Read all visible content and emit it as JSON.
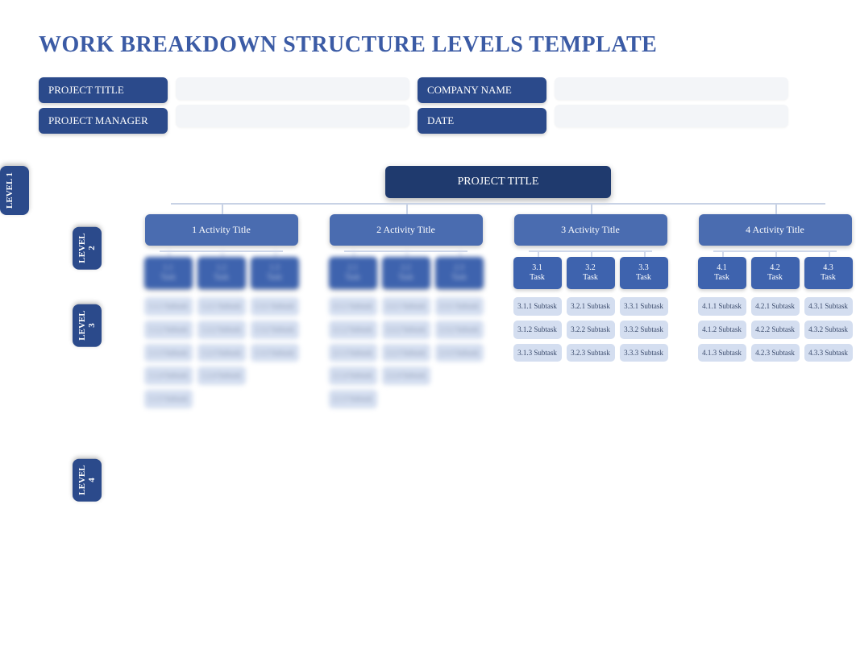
{
  "colors": {
    "title": "#3b5ba5",
    "label_bg": "#2b4a8b",
    "input_bg": "#f3f5f8",
    "root_bg": "#1f3a6e",
    "activity_bg": "#4a6cb0",
    "task_bg": "#3e63ae",
    "subtask_bg": "#d4def0",
    "subtask_text": "#3a4a6b",
    "connector": "#c8d2e5",
    "white": "#ffffff"
  },
  "page_title": "WORK BREAKDOWN STRUCTURE LEVELS TEMPLATE",
  "meta": {
    "left": [
      {
        "label": "PROJECT TITLE",
        "value": ""
      },
      {
        "label": "PROJECT MANAGER",
        "value": ""
      }
    ],
    "right": [
      {
        "label": "COMPANY NAME",
        "value": ""
      },
      {
        "label": "DATE",
        "value": ""
      }
    ]
  },
  "level_labels": [
    "LEVEL 1",
    "LEVEL 2",
    "LEVEL 3",
    "LEVEL 4"
  ],
  "tree": {
    "root": "PROJECT TITLE",
    "activities": [
      {
        "title": "1 Activity Title",
        "blurred": true,
        "tasks": [
          {
            "id": "1.1",
            "label": "Task",
            "subtasks": [
              "1.1.1 Subtask",
              "1.1.2 Subtask",
              "1.1.3 Subtask",
              "1.1.4 Subtask",
              "1.1.5 Subtask"
            ]
          },
          {
            "id": "1.2",
            "label": "Task",
            "subtasks": [
              "1.2.1 Subtask",
              "1.2.2 Subtask",
              "1.2.3 Subtask",
              "1.2.4 Subtask"
            ]
          },
          {
            "id": "1.3",
            "label": "Task",
            "subtasks": [
              "1.3.1 Subtask",
              "1.3.2 Subtask",
              "1.3.3 Subtask"
            ]
          }
        ]
      },
      {
        "title": "2 Activity Title",
        "blurred": true,
        "tasks": [
          {
            "id": "2.1",
            "label": "Task",
            "subtasks": [
              "2.1.1 Subtask",
              "2.1.2 Subtask",
              "2.1.3 Subtask",
              "2.1.4 Subtask",
              "2.1.5 Subtask"
            ]
          },
          {
            "id": "2.2",
            "label": "Task",
            "subtasks": [
              "2.2.1 Subtask",
              "2.2.2 Subtask",
              "2.2.3 Subtask",
              "2.2.4 Subtask"
            ]
          },
          {
            "id": "2.3",
            "label": "Task",
            "subtasks": [
              "2.3.1 Subtask",
              "2.3.2 Subtask",
              "2.3.3 Subtask"
            ]
          }
        ]
      },
      {
        "title": "3 Activity Title",
        "blurred": false,
        "tasks": [
          {
            "id": "3.1",
            "label": "Task",
            "subtasks": [
              "3.1.1 Subtask",
              "3.1.2 Subtask",
              "3.1.3 Subtask"
            ]
          },
          {
            "id": "3.2",
            "label": "Task",
            "subtasks": [
              "3.2.1 Subtask",
              "3.2.2 Subtask",
              "3.2.3 Subtask"
            ]
          },
          {
            "id": "3.3",
            "label": "Task",
            "subtasks": [
              "3.3.1 Subtask",
              "3.3.2 Subtask",
              "3.3.3 Subtask"
            ]
          }
        ]
      },
      {
        "title": "4 Activity Title",
        "blurred": false,
        "tasks": [
          {
            "id": "4.1",
            "label": "Task",
            "subtasks": [
              "4.1.1 Subtask",
              "4.1.2 Subtask",
              "4.1.3 Subtask"
            ]
          },
          {
            "id": "4.2",
            "label": "Task",
            "subtasks": [
              "4.2.1 Subtask",
              "4.2.2 Subtask",
              "4.2.3 Subtask"
            ]
          },
          {
            "id": "4.3",
            "label": "Task",
            "subtasks": [
              "4.3.1 Subtask",
              "4.3.2 Subtask",
              "4.3.3 Subtask"
            ]
          }
        ]
      }
    ]
  }
}
